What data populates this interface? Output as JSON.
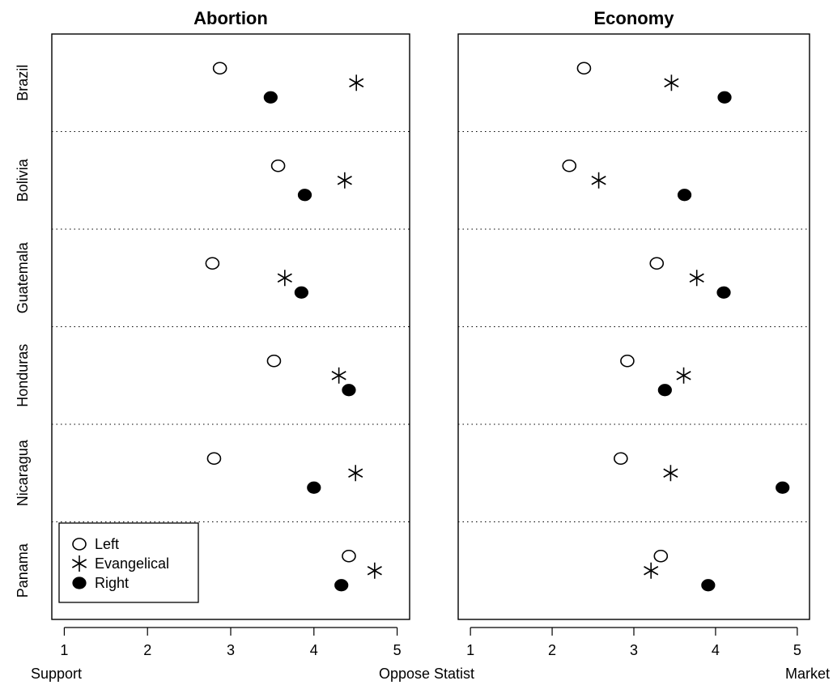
{
  "chart_data": {
    "type": "scatter",
    "categories": [
      "Brazil",
      "Bolivia",
      "Guatemala",
      "Honduras",
      "Nicaragua",
      "Panama"
    ],
    "series_styles": {
      "Left": {
        "marker": "open-circle"
      },
      "Evangelical": {
        "marker": "asterisk"
      },
      "Right": {
        "marker": "filled-circle"
      }
    },
    "legend": {
      "entries": [
        "Left",
        "Evangelical",
        "Right"
      ],
      "placement": "bottom-left of Abortion panel"
    },
    "xlim": [
      0.85,
      5.15
    ],
    "x_ticks": [
      1,
      2,
      3,
      4,
      5
    ],
    "grid": "dotted horizontal separators between countries",
    "panels": [
      {
        "title": "Abortion",
        "x_low_label": "Support",
        "x_high_label": "Oppose",
        "series": [
          {
            "name": "Left",
            "values": [
              2.87,
              3.57,
              2.78,
              3.52,
              2.8,
              4.42
            ]
          },
          {
            "name": "Evangelical",
            "values": [
              4.51,
              4.37,
              3.65,
              4.3,
              4.5,
              4.73
            ]
          },
          {
            "name": "Right",
            "values": [
              3.48,
              3.89,
              3.85,
              4.42,
              4.0,
              4.33
            ]
          }
        ]
      },
      {
        "title": "Economy",
        "x_low_label": "Statist",
        "x_high_label": "Market",
        "series": [
          {
            "name": "Left",
            "values": [
              2.39,
              2.21,
              3.28,
              2.92,
              2.84,
              3.33
            ]
          },
          {
            "name": "Evangelical",
            "values": [
              3.46,
              2.57,
              3.77,
              3.61,
              3.45,
              3.21
            ]
          },
          {
            "name": "Right",
            "values": [
              4.11,
              3.62,
              4.1,
              3.38,
              4.82,
              3.91
            ]
          }
        ]
      }
    ]
  }
}
